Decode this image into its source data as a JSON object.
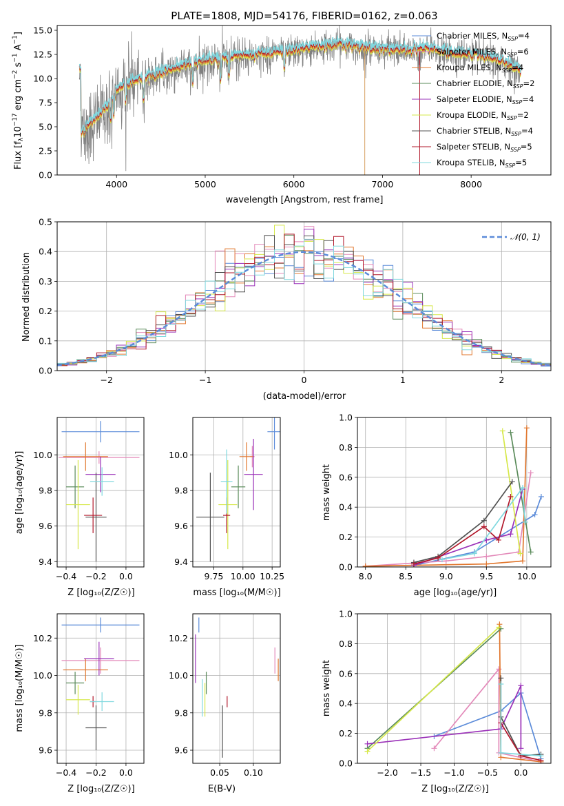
{
  "colors": {
    "chab_miles": "#5b8bd9",
    "salp_miles": "#e389b9",
    "kroupa_miles": "#e1772e",
    "chab_elodie": "#5a8b5a",
    "salp_elodie": "#9a30b8",
    "kroupa_elodie": "#d6e84a",
    "chab_stelib": "#505050",
    "salp_stelib": "#b2182b",
    "kroupa_stelib": "#7fd8de",
    "data": "#808080",
    "grid": "#b0b0b0",
    "normal": "#5b8bd9"
  },
  "chart_data": [
    {
      "id": "spectrum",
      "type": "line",
      "title": "PLATE=1808, MJD=54176, FIBERID=0162, z=0.063",
      "xlabel": "wavelength [Angstrom, rest frame]",
      "ylabel_parts": {
        "a": "Flux [f",
        "b": "λ",
        "c": "10",
        "d": "−17",
        "e": " erg cm",
        "f": "−2",
        "g": " s",
        "h": "−1",
        "i": " A",
        "j": "−1",
        "k": "]"
      },
      "xlim": [
        3330,
        8900
      ],
      "ylim": [
        0,
        15.5
      ],
      "xticks": [
        4000,
        5000,
        6000,
        7000,
        8000
      ],
      "yticks": [
        0.0,
        2.5,
        5.0,
        7.5,
        10.0,
        12.5,
        15.0
      ],
      "grid": false,
      "legend_position": "top-right",
      "continuum": [
        [
          3600,
          4.2
        ],
        [
          3700,
          5.2
        ],
        [
          3800,
          6.0
        ],
        [
          3900,
          7.0
        ],
        [
          4000,
          8.7
        ],
        [
          4100,
          9.3
        ],
        [
          4300,
          9.9
        ],
        [
          4500,
          10.5
        ],
        [
          4700,
          11.0
        ],
        [
          5000,
          11.8
        ],
        [
          5300,
          12.1
        ],
        [
          5600,
          12.4
        ],
        [
          6000,
          12.8
        ],
        [
          6300,
          13.2
        ],
        [
          6500,
          13.5
        ],
        [
          6700,
          13.2
        ],
        [
          7000,
          12.9
        ],
        [
          7300,
          12.8
        ],
        [
          7500,
          13.0
        ],
        [
          7700,
          12.6
        ],
        [
          8000,
          12.4
        ],
        [
          8200,
          12.0
        ],
        [
          8400,
          11.5
        ],
        [
          8560,
          10.7
        ]
      ],
      "legend": [
        {
          "key": "chab_miles",
          "name": "Chabrier MILES",
          "n": "4"
        },
        {
          "key": "salp_miles",
          "name": "Salpeter MILES",
          "n": "6"
        },
        {
          "key": "kroupa_miles",
          "name": "Kroupa MILES",
          "n": "4"
        },
        {
          "key": "chab_elodie",
          "name": "Chabrier ELODIE",
          "n": "2"
        },
        {
          "key": "salp_elodie",
          "name": "Salpeter ELODIE",
          "n": "4"
        },
        {
          "key": "kroupa_elodie",
          "name": "Kroupa ELODIE",
          "n": "2"
        },
        {
          "key": "chab_stelib",
          "name": "Chabrier STELIB",
          "n": "4"
        },
        {
          "key": "salp_stelib",
          "name": "Salpeter STELIB",
          "n": "5"
        },
        {
          "key": "kroupa_stelib",
          "name": "Kroupa STELIB",
          "n": "5"
        }
      ],
      "legend_n_label": "N",
      "legend_n_sub": "SSP"
    },
    {
      "id": "residuals",
      "type": "histogram",
      "xlabel": "(data-model)/error",
      "ylabel": "Normed distribution",
      "xlim": [
        -2.5,
        2.5
      ],
      "ylim": [
        0,
        0.5
      ],
      "xticks": [
        -2,
        -1,
        0,
        1,
        2
      ],
      "yticks": [
        0.0,
        0.1,
        0.2,
        0.3,
        0.4,
        0.5
      ],
      "grid": true,
      "bin_width": 0.1,
      "legend_label": "𝒩(0, 1)",
      "legend_position": "top-right"
    },
    {
      "id": "age_vs_Z",
      "type": "errorbar",
      "xlabel": "Z [log₁₀(Z/Z☉)]",
      "ylabel": "age  [log₁₀(age/yr)]",
      "xlim": [
        -0.46,
        0.12
      ],
      "ylim": [
        9.37,
        10.21
      ],
      "xticks": [
        -0.4,
        -0.2,
        0.0
      ],
      "yticks": [
        9.4,
        9.6,
        9.8,
        10.0
      ],
      "grid": true,
      "points": [
        {
          "key": "chab_miles",
          "x": -0.17,
          "xerr": 0.26,
          "y": 10.13,
          "yerr": 0.06
        },
        {
          "key": "salp_miles",
          "x": -0.18,
          "xerr": 0.27,
          "y": 9.985,
          "yerr": 0.035
        },
        {
          "key": "kroupa_miles",
          "x": -0.27,
          "xerr": 0.15,
          "y": 9.99,
          "yerr": 0.08
        },
        {
          "key": "chab_elodie",
          "x": -0.34,
          "xerr": 0.06,
          "y": 9.82,
          "yerr": 0.12
        },
        {
          "key": "salp_elodie",
          "x": -0.17,
          "xerr": 0.1,
          "y": 9.89,
          "yerr": 0.1
        },
        {
          "key": "kroupa_elodie",
          "x": -0.32,
          "xerr": 0.08,
          "y": 9.72,
          "yerr": 0.25
        },
        {
          "key": "chab_stelib",
          "x": -0.2,
          "xerr": 0.07,
          "y": 9.65,
          "yerr": 0.25
        },
        {
          "key": "salp_stelib",
          "x": -0.22,
          "xerr": 0.06,
          "y": 9.66,
          "yerr": 0.1
        },
        {
          "key": "kroupa_stelib",
          "x": -0.16,
          "xerr": 0.08,
          "y": 9.85,
          "yerr": 0.08
        }
      ]
    },
    {
      "id": "age_vs_mass",
      "type": "errorbar",
      "xlabel": "mass [log₁₀(M/M☉)]",
      "ylabel": "",
      "xlim": [
        9.57,
        10.32
      ],
      "ylim": [
        9.37,
        10.21
      ],
      "xticks": [
        9.75,
        10.0,
        10.25
      ],
      "yticks": [
        9.4,
        9.6,
        9.8,
        10.0
      ],
      "grid": true,
      "points": [
        {
          "key": "chab_miles",
          "x": 10.27,
          "xerr": 0.06,
          "y": 10.13,
          "yerr": 0.1
        },
        {
          "key": "salp_miles",
          "x": 10.08,
          "xerr": 0.02,
          "y": 9.99,
          "yerr": 0.06
        },
        {
          "key": "kroupa_miles",
          "x": 10.03,
          "xerr": 0.06,
          "y": 9.99,
          "yerr": 0.08
        },
        {
          "key": "chab_elodie",
          "x": 9.96,
          "xerr": 0.06,
          "y": 9.82,
          "yerr": 0.12
        },
        {
          "key": "salp_elodie",
          "x": 10.09,
          "xerr": 0.08,
          "y": 9.89,
          "yerr": 0.2
        },
        {
          "key": "kroupa_elodie",
          "x": 9.87,
          "xerr": 0.08,
          "y": 9.72,
          "yerr": 0.25
        },
        {
          "key": "chab_stelib",
          "x": 9.72,
          "xerr": 0.12,
          "y": 9.65,
          "yerr": 0.25
        },
        {
          "key": "salp_stelib",
          "x": 9.86,
          "xerr": 0.03,
          "y": 9.66,
          "yerr": 0.1
        },
        {
          "key": "kroupa_stelib",
          "x": 9.86,
          "xerr": 0.05,
          "y": 9.85,
          "yerr": 0.18
        }
      ]
    },
    {
      "id": "weight_vs_age",
      "type": "line",
      "xlabel": "age  [log₁₀(age/yr)]",
      "ylabel": "mass weight",
      "xlim": [
        7.9,
        10.3
      ],
      "ylim": [
        0,
        1.0
      ],
      "xticks": [
        8.0,
        8.5,
        9.0,
        9.5,
        10.0
      ],
      "yticks": [
        0.0,
        0.2,
        0.4,
        0.6,
        0.8,
        1.0
      ],
      "grid": true,
      "series": [
        {
          "key": "chab_miles",
          "points": [
            [
              8.6,
              0.01
            ],
            [
              9.35,
              0.1
            ],
            [
              10.1,
              0.35
            ],
            [
              10.18,
              0.47
            ]
          ]
        },
        {
          "key": "salp_miles",
          "points": [
            [
              8.0,
              0.005
            ],
            [
              9.0,
              0.04
            ],
            [
              9.5,
              0.07
            ],
            [
              9.9,
              0.1
            ],
            [
              10.05,
              0.63
            ]
          ]
        },
        {
          "key": "kroupa_miles",
          "points": [
            [
              8.0,
              0.005
            ],
            [
              9.5,
              0.02
            ],
            [
              9.95,
              0.04
            ],
            [
              10.0,
              0.93
            ]
          ]
        },
        {
          "key": "chab_elodie",
          "points": [
            [
              9.8,
              0.9
            ],
            [
              10.05,
              0.1
            ]
          ]
        },
        {
          "key": "salp_elodie",
          "points": [
            [
              8.6,
              0.01
            ],
            [
              9.5,
              0.18
            ],
            [
              9.8,
              0.22
            ],
            [
              9.95,
              0.52
            ]
          ]
        },
        {
          "key": "kroupa_elodie",
          "points": [
            [
              9.7,
              0.91
            ],
            [
              9.92,
              0.09
            ]
          ]
        },
        {
          "key": "chab_stelib",
          "points": [
            [
              8.6,
              0.03
            ],
            [
              8.9,
              0.07
            ],
            [
              9.47,
              0.31
            ],
            [
              9.82,
              0.57
            ]
          ]
        },
        {
          "key": "salp_stelib",
          "points": [
            [
              8.6,
              0.02
            ],
            [
              8.9,
              0.06
            ],
            [
              9.47,
              0.27
            ],
            [
              9.65,
              0.18
            ],
            [
              9.8,
              0.47
            ]
          ]
        },
        {
          "key": "kroupa_stelib",
          "points": [
            [
              8.95,
              0.05
            ],
            [
              9.35,
              0.09
            ],
            [
              9.95,
              0.53
            ],
            [
              9.98,
              0.3
            ]
          ]
        }
      ]
    },
    {
      "id": "mass_vs_Z",
      "type": "errorbar",
      "xlabel": "Z [log₁₀(Z/Z☉)]",
      "ylabel": "mass [log₁₀(M/M☉)]",
      "xlim": [
        -0.46,
        0.12
      ],
      "ylim": [
        9.53,
        10.33
      ],
      "xticks": [
        -0.4,
        -0.2,
        0.0
      ],
      "yticks": [
        9.6,
        9.8,
        10.0,
        10.2
      ],
      "grid": true,
      "points": [
        {
          "key": "chab_miles",
          "x": -0.17,
          "xerr": 0.26,
          "y": 10.27,
          "yerr": 0.04
        },
        {
          "key": "salp_miles",
          "x": -0.17,
          "xerr": 0.26,
          "y": 10.08,
          "yerr": 0.07
        },
        {
          "key": "kroupa_miles",
          "x": -0.27,
          "xerr": 0.15,
          "y": 10.03,
          "yerr": 0.06
        },
        {
          "key": "chab_elodie",
          "x": -0.34,
          "xerr": 0.06,
          "y": 9.96,
          "yerr": 0.06
        },
        {
          "key": "salp_elodie",
          "x": -0.18,
          "xerr": 0.1,
          "y": 10.09,
          "yerr": 0.09
        },
        {
          "key": "kroupa_elodie",
          "x": -0.32,
          "xerr": 0.08,
          "y": 9.87,
          "yerr": 0.08
        },
        {
          "key": "chab_stelib",
          "x": -0.2,
          "xerr": 0.07,
          "y": 9.72,
          "yerr": 0.12
        },
        {
          "key": "salp_stelib",
          "x": -0.22,
          "xerr": 0.02,
          "y": 9.86,
          "yerr": 0.03
        },
        {
          "key": "kroupa_stelib",
          "x": -0.16,
          "xerr": 0.08,
          "y": 9.86,
          "yerr": 0.05
        }
      ]
    },
    {
      "id": "mass_vs_ebv",
      "type": "errorbar",
      "xlabel": "E(B-V)",
      "ylabel": "",
      "xlim": [
        0.01,
        0.14
      ],
      "ylim": [
        9.53,
        10.33
      ],
      "xticks": [
        0.05,
        0.1
      ],
      "yticks": [
        9.6,
        9.8,
        10.0,
        10.2
      ],
      "grid": true,
      "points": [
        {
          "key": "chab_miles",
          "x": 0.019,
          "xerr": 0,
          "y": 10.27,
          "yerr": 0.04
        },
        {
          "key": "salp_miles",
          "x": 0.132,
          "xerr": 0,
          "y": 10.08,
          "yerr": 0.07
        },
        {
          "key": "kroupa_miles",
          "x": 0.137,
          "xerr": 0,
          "y": 10.03,
          "yerr": 0.06
        },
        {
          "key": "chab_elodie",
          "x": 0.03,
          "xerr": 0,
          "y": 9.96,
          "yerr": 0.06
        },
        {
          "key": "salp_elodie",
          "x": 0.014,
          "xerr": 0,
          "y": 10.09,
          "yerr": 0.13
        },
        {
          "key": "kroupa_elodie",
          "x": 0.028,
          "xerr": 0,
          "y": 9.87,
          "yerr": 0.09
        },
        {
          "key": "chab_stelib",
          "x": 0.054,
          "xerr": 0,
          "y": 9.7,
          "yerr": 0.14
        },
        {
          "key": "salp_stelib",
          "x": 0.061,
          "xerr": 0,
          "y": 9.86,
          "yerr": 0.03
        },
        {
          "key": "kroupa_stelib",
          "x": 0.024,
          "xerr": 0,
          "y": 9.88,
          "yerr": 0.1
        }
      ]
    },
    {
      "id": "weight_vs_Z",
      "type": "line",
      "xlabel": "Z [log₁₀(Z/Z☉)]",
      "ylabel": "mass weight",
      "xlim": [
        -2.45,
        0.45
      ],
      "ylim": [
        0,
        1.0
      ],
      "xticks": [
        -2.0,
        -1.5,
        -1.0,
        -0.5,
        0.0
      ],
      "yticks": [
        0.0,
        0.2,
        0.4,
        0.6,
        0.8,
        1.0
      ],
      "grid": true,
      "series": [
        {
          "key": "chab_miles",
          "points": [
            [
              -1.3,
              0.18
            ],
            [
              -0.3,
              0.35
            ],
            [
              0.0,
              0.47
            ],
            [
              0.3,
              0.03
            ]
          ]
        },
        {
          "key": "salp_miles",
          "points": [
            [
              -1.3,
              0.1
            ],
            [
              -0.33,
              0.63
            ],
            [
              -0.33,
              0.07
            ],
            [
              0.3,
              0.01
            ]
          ]
        },
        {
          "key": "kroupa_miles",
          "points": [
            [
              -0.32,
              0.93
            ],
            [
              -0.3,
              0.04
            ],
            [
              0.3,
              0.01
            ]
          ]
        },
        {
          "key": "chab_elodie",
          "points": [
            [
              -2.3,
              0.1
            ],
            [
              -0.3,
              0.9
            ]
          ]
        },
        {
          "key": "salp_elodie",
          "points": [
            [
              -2.3,
              0.13
            ],
            [
              -0.3,
              0.23
            ],
            [
              0.0,
              0.52
            ],
            [
              0.0,
              0.1
            ]
          ]
        },
        {
          "key": "kroupa_elodie",
          "points": [
            [
              -2.3,
              0.08
            ],
            [
              -0.33,
              0.91
            ]
          ]
        },
        {
          "key": "chab_stelib",
          "points": [
            [
              -0.3,
              0.57
            ],
            [
              -0.3,
              0.31
            ],
            [
              0.0,
              0.05
            ],
            [
              0.3,
              0.06
            ]
          ]
        },
        {
          "key": "salp_stelib",
          "points": [
            [
              -0.3,
              0.27
            ],
            [
              0.0,
              0.05
            ],
            [
              0.3,
              0.02
            ]
          ]
        },
        {
          "key": "kroupa_stelib",
          "points": [
            [
              -0.3,
              0.53
            ],
            [
              -0.3,
              0.07
            ],
            [
              0.3,
              0.05
            ]
          ]
        }
      ]
    }
  ]
}
